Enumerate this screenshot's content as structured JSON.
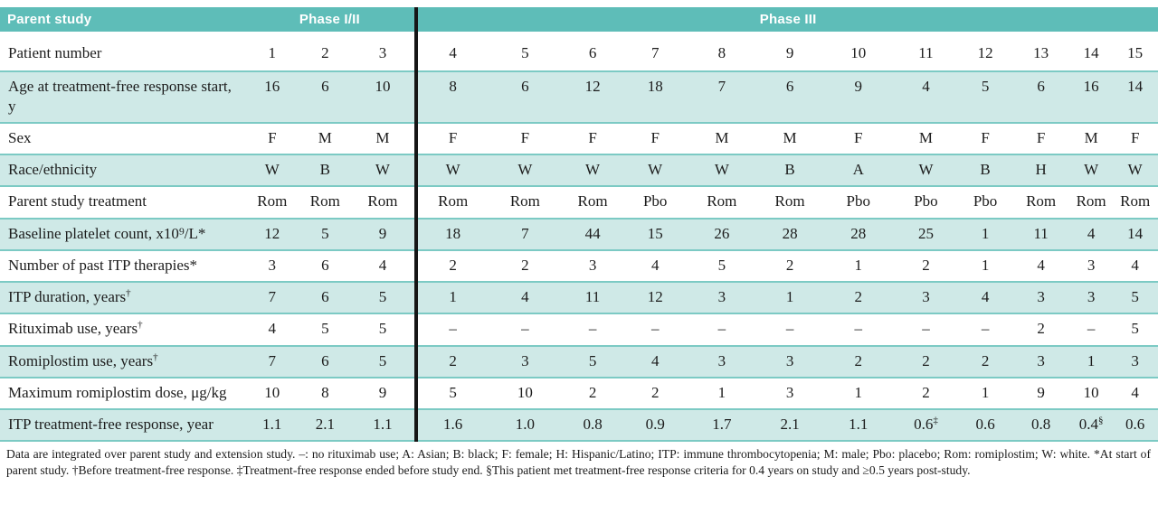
{
  "table": {
    "corner_label": "Parent study",
    "phase_groups": [
      {
        "label": "Phase I/II",
        "span": 3
      },
      {
        "label": "Phase III",
        "span": 12
      }
    ],
    "rows": [
      {
        "label": "Patient number",
        "values": [
          "1",
          "2",
          "3",
          "4",
          "5",
          "6",
          "7",
          "8",
          "9",
          "10",
          "11",
          "12",
          "13",
          "14",
          "15"
        ]
      },
      {
        "label": "Age at treatment-free response start, y",
        "values": [
          "16",
          "6",
          "10",
          "8",
          "6",
          "12",
          "18",
          "7",
          "6",
          "9",
          "4",
          "5",
          "6",
          "16",
          "14"
        ]
      },
      {
        "label": "Sex",
        "values": [
          "F",
          "M",
          "M",
          "F",
          "F",
          "F",
          "F",
          "M",
          "M",
          "F",
          "M",
          "F",
          "F",
          "M",
          "F"
        ]
      },
      {
        "label": "Race/ethnicity",
        "values": [
          "W",
          "B",
          "W",
          "W",
          "W",
          "W",
          "W",
          "W",
          "B",
          "A",
          "W",
          "B",
          "H",
          "W",
          "W"
        ]
      },
      {
        "label": "Parent study treatment",
        "values": [
          "Rom",
          "Rom",
          "Rom",
          "Rom",
          "Rom",
          "Rom",
          "Pbo",
          "Rom",
          "Rom",
          "Pbo",
          "Pbo",
          "Pbo",
          "Rom",
          "Rom",
          "Rom"
        ]
      },
      {
        "label": "Baseline platelet count, x10⁹/L*",
        "values": [
          "12",
          "5",
          "9",
          "18",
          "7",
          "44",
          "15",
          "26",
          "28",
          "28",
          "25",
          "1",
          "11",
          "4",
          "14"
        ]
      },
      {
        "label": "Number of past ITP therapies*",
        "values": [
          "3",
          "6",
          "4",
          "2",
          "2",
          "3",
          "4",
          "5",
          "2",
          "1",
          "2",
          "1",
          "4",
          "3",
          "4"
        ]
      },
      {
        "label": "ITP duration, years†",
        "values": [
          "7",
          "6",
          "5",
          "1",
          "4",
          "11",
          "12",
          "3",
          "1",
          "2",
          "3",
          "4",
          "3",
          "3",
          "5"
        ]
      },
      {
        "label": "Rituximab use, years†",
        "values": [
          "4",
          "5",
          "5",
          "–",
          "–",
          "–",
          "–",
          "–",
          "–",
          "–",
          "–",
          "–",
          "2",
          "–",
          "5"
        ]
      },
      {
        "label": "Romiplostim use, years†",
        "values": [
          "7",
          "6",
          "5",
          "2",
          "3",
          "5",
          "4",
          "3",
          "3",
          "2",
          "2",
          "2",
          "3",
          "1",
          "3"
        ]
      },
      {
        "label": "Maximum romiplostim dose, μg/kg",
        "values": [
          "10",
          "8",
          "9",
          "5",
          "10",
          "2",
          "2",
          "1",
          "3",
          "1",
          "2",
          "1",
          "9",
          "10",
          "4"
        ]
      },
      {
        "label": "ITP treatment-free response, year",
        "values": [
          "1.1",
          "2.1",
          "1.1",
          "1.6",
          "1.0",
          "0.8",
          "0.9",
          "1.7",
          "2.1",
          "1.1",
          "0.6‡",
          "0.6",
          "0.8",
          "0.4§",
          "0.6"
        ]
      }
    ]
  },
  "footnote": "Data are integrated over parent study and extension study. –: no rituximab use; A: Asian; B: black; F: female; H: Hispanic/Latino; ITP: immune thrombocytopenia; M: male; Pbo: placebo; Rom: romiplostim; W: white. *At start of parent study. †Before treatment-free response. ‡Treatment-free response ended before study end. §This patient met treatment-free response criteria for 0.4 years on study and ≥0.5 years post-study.",
  "colors": {
    "header_teal": "#5ebdb8",
    "row_shade_teal": "#cfe9e7",
    "row_border_teal": "#7ccac4",
    "phase_divider_black": "#161616",
    "text": "#1c1c1c"
  }
}
